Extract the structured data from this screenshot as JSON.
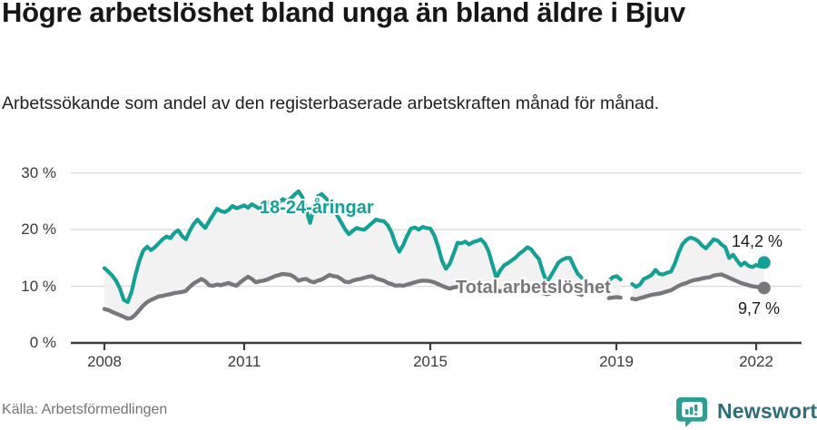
{
  "header": {
    "title": "Högre arbetslöshet bland unga än bland äldre i Bjuv",
    "subtitle": "Arbetssökande som andel av den registerbaserade arbetskraften månad för månad."
  },
  "footer": {
    "source": "Källa: Arbetsförmedlingen",
    "brand": "Newsworthy"
  },
  "colors": {
    "youth_line": "#14a096",
    "total_line": "#77777c",
    "area_fill": "#f2f2f2",
    "grid": "#dcdcdc",
    "axis": "#3c3c3c",
    "value_label": "#1b1b1b",
    "brand_text": "#2d6e79",
    "brand_badge": "#2f9d92"
  },
  "chart_data": {
    "type": "line",
    "x_start": "2008-01",
    "x_end": "2022-03",
    "x_interval": "month",
    "x_tick_labels": [
      "2008",
      "2011",
      "2015",
      "2019",
      "2022"
    ],
    "y_tick_labels": [
      "30 %",
      "20 %",
      "10 %",
      "0 %"
    ],
    "ylim": [
      0,
      32
    ],
    "grid": true,
    "legend_position": "inline-labels",
    "note": "gap in both series 2018-05..2018-10 and 2019-03..2019-04 (missing data)",
    "series": [
      {
        "name": "18-24-åringar",
        "color": "#14a096",
        "end_label": "14,2 %",
        "end_value": 14.2,
        "values": [
          13.2,
          12.6,
          11.9,
          11.0,
          9.6,
          7.6,
          7.2,
          9.0,
          12.0,
          14.5,
          16.3,
          17.0,
          16.4,
          16.9,
          17.6,
          18.3,
          18.8,
          18.5,
          19.4,
          19.9,
          18.9,
          18.3,
          19.8,
          21.0,
          21.8,
          21.0,
          20.3,
          21.5,
          22.6,
          23.7,
          23.3,
          23.1,
          23.5,
          24.2,
          23.8,
          24.0,
          24.3,
          23.9,
          24.5,
          24.1,
          23.7,
          24.4,
          24.9,
          24.6,
          25.2,
          24.8,
          25.4,
          25.0,
          25.5,
          26.2,
          26.8,
          25.8,
          23.5,
          21.2,
          24.0,
          25.9,
          26.3,
          25.6,
          24.9,
          24.4,
          22.5,
          21.3,
          20.1,
          19.2,
          19.8,
          20.3,
          20.1,
          20.0,
          20.6,
          21.2,
          21.8,
          21.6,
          21.5,
          20.8,
          19.5,
          17.5,
          16.1,
          17.3,
          18.9,
          20.2,
          20.4,
          20.0,
          20.5,
          20.3,
          20.2,
          19.0,
          17.0,
          14.5,
          13.1,
          14.0,
          15.8,
          17.7,
          17.6,
          17.9,
          17.4,
          17.8,
          18.0,
          18.3,
          17.6,
          16.2,
          13.8,
          11.5,
          12.8,
          13.7,
          14.1,
          14.6,
          15.1,
          15.8,
          16.3,
          16.9,
          16.5,
          15.6,
          14.8,
          12.5,
          10.7,
          11.8,
          13.0,
          14.2,
          14.7,
          15.0,
          15.0,
          13.5,
          12.2,
          11.5,
          null,
          null,
          null,
          null,
          null,
          null,
          11.0,
          11.6,
          11.8,
          11.2,
          null,
          null,
          10.4,
          9.9,
          10.3,
          11.3,
          11.6,
          12.0,
          12.9,
          12.2,
          12.1,
          12.4,
          12.6,
          14.0,
          16.0,
          17.5,
          18.2,
          18.6,
          18.4,
          18.0,
          17.2,
          16.7,
          17.5,
          18.3,
          18.1,
          17.4,
          16.9,
          15.0,
          15.6,
          14.6,
          13.7,
          14.2,
          13.6,
          13.4,
          13.8,
          13.5,
          14.2
        ]
      },
      {
        "name": "Total arbetslöshet",
        "color": "#77777c",
        "end_label": "9,7 %",
        "end_value": 9.7,
        "values": [
          6.0,
          5.8,
          5.5,
          5.2,
          4.9,
          4.6,
          4.3,
          4.4,
          5.0,
          5.8,
          6.6,
          7.2,
          7.6,
          7.9,
          8.2,
          8.3,
          8.5,
          8.6,
          8.8,
          8.9,
          9.0,
          9.2,
          9.9,
          10.5,
          10.9,
          11.3,
          10.9,
          10.2,
          10.1,
          10.3,
          10.2,
          10.4,
          10.6,
          10.3,
          10.1,
          10.7,
          11.2,
          11.7,
          11.3,
          10.7,
          10.9,
          11.0,
          11.2,
          11.5,
          11.8,
          12.0,
          12.2,
          12.1,
          12.0,
          11.6,
          11.0,
          11.2,
          11.3,
          10.9,
          10.7,
          11.0,
          11.2,
          11.6,
          12.0,
          11.8,
          11.7,
          11.3,
          10.8,
          10.7,
          11.0,
          11.2,
          11.3,
          11.5,
          11.7,
          11.8,
          11.4,
          11.2,
          11.0,
          10.6,
          10.4,
          10.1,
          10.2,
          10.1,
          10.3,
          10.5,
          10.7,
          10.9,
          11.0,
          11.0,
          10.9,
          10.7,
          10.4,
          10.1,
          9.8,
          9.6,
          9.8,
          9.9,
          10.0,
          10.2,
          10.3,
          10.4,
          10.4,
          10.5,
          10.3,
          10.0,
          9.7,
          9.3,
          9.1,
          9.3,
          9.5,
          9.6,
          9.8,
          9.9,
          10.0,
          10.1,
          9.9,
          9.6,
          9.2,
          8.8,
          8.6,
          8.8,
          9.0,
          9.2,
          9.3,
          9.4,
          9.3,
          9.0,
          8.7,
          8.5,
          null,
          null,
          null,
          null,
          null,
          null,
          7.9,
          8.0,
          8.1,
          8.0,
          null,
          null,
          7.8,
          7.7,
          7.9,
          8.1,
          8.3,
          8.5,
          8.6,
          8.7,
          8.9,
          9.1,
          9.3,
          9.7,
          10.1,
          10.4,
          10.6,
          10.9,
          11.1,
          11.2,
          11.4,
          11.5,
          11.6,
          11.9,
          12.0,
          12.1,
          11.8,
          11.5,
          11.2,
          10.9,
          10.6,
          10.4,
          10.2,
          10.0,
          9.9,
          9.8,
          9.7
        ]
      }
    ]
  }
}
